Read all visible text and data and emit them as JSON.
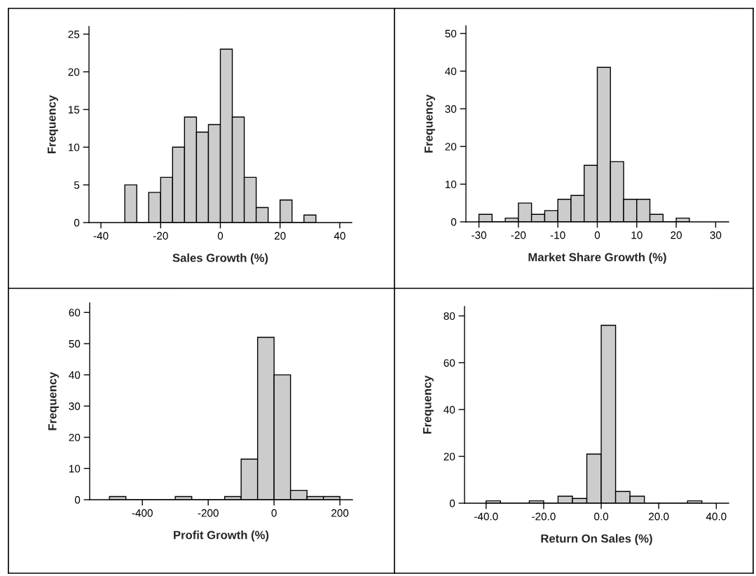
{
  "chart_data": [
    {
      "type": "histogram",
      "xlabel": "Sales Growth (%)",
      "ylabel": "Frequency",
      "color": "#cccccc",
      "bins": [
        -32,
        -28,
        -24,
        -20,
        -16,
        -12,
        -8,
        -4,
        0,
        4,
        8,
        12,
        16,
        20,
        24,
        28,
        32
      ],
      "values": [
        5,
        0,
        4,
        6,
        10,
        14,
        12,
        13,
        23,
        14,
        6,
        2,
        0,
        3,
        0,
        1
      ],
      "xlim": [
        -44,
        44
      ],
      "ylim": [
        0,
        26
      ],
      "xticks": [
        -40,
        -20,
        0,
        20,
        40
      ],
      "yticks": [
        0,
        5,
        10,
        15,
        20,
        25
      ]
    },
    {
      "type": "histogram",
      "xlabel": "Market Share Growth (%)",
      "ylabel": "Frequency",
      "color": "#cccccc",
      "bins": [
        -30,
        -26.67,
        -23.33,
        -20,
        -16.67,
        -13.33,
        -10,
        -6.67,
        -3.33,
        0,
        3.33,
        6.67,
        10,
        13.33,
        16.67,
        20,
        23.33
      ],
      "values": [
        2,
        0,
        1,
        5,
        2,
        3,
        6,
        7,
        15,
        41,
        16,
        6,
        6,
        2,
        0,
        1
      ],
      "xlim": [
        -33.3,
        33.3
      ],
      "ylim": [
        0,
        52
      ],
      "xticks": [
        -30,
        -20,
        -10,
        0,
        10,
        20,
        30
      ],
      "yticks": [
        0,
        10,
        20,
        30,
        40,
        50
      ]
    },
    {
      "type": "histogram",
      "xlabel": "Profit Growth (%)",
      "ylabel": "Frequency",
      "color": "#cccccc",
      "bins": [
        -500,
        -450,
        -400,
        -350,
        -300,
        -250,
        -200,
        -150,
        -100,
        -50,
        0,
        50,
        100,
        150,
        200
      ],
      "values": [
        1,
        0,
        0,
        0,
        1,
        0,
        0,
        1,
        13,
        52,
        40,
        3,
        1,
        1
      ],
      "xlim": [
        -560,
        238
      ],
      "ylim": [
        0,
        63
      ],
      "xticks": [
        -400,
        -200,
        0,
        200
      ],
      "yticks": [
        0,
        10,
        20,
        30,
        40,
        50,
        60
      ]
    },
    {
      "type": "histogram",
      "xlabel": "Return On Sales (%)",
      "ylabel": "Frequency",
      "color": "#cccccc",
      "bins": [
        -40,
        -35,
        -30,
        -25,
        -20,
        -15,
        -10,
        -5,
        0,
        5,
        10,
        15,
        20,
        25,
        30,
        35
      ],
      "values": [
        1,
        0,
        0,
        1,
        0,
        3,
        2,
        21,
        76,
        5,
        3,
        0,
        0,
        0,
        1
      ],
      "xlim": [
        -47.5,
        44.3
      ],
      "ylim": [
        0,
        84
      ],
      "xticks": [
        {
          "value": -40,
          "label": "-40.0"
        },
        {
          "value": -20,
          "label": "-20.0"
        },
        {
          "value": 0,
          "label": "0.0"
        },
        {
          "value": 20,
          "label": "20.0"
        },
        {
          "value": 40,
          "label": "40.0"
        }
      ],
      "yticks": [
        0,
        20,
        40,
        60,
        80
      ]
    }
  ]
}
